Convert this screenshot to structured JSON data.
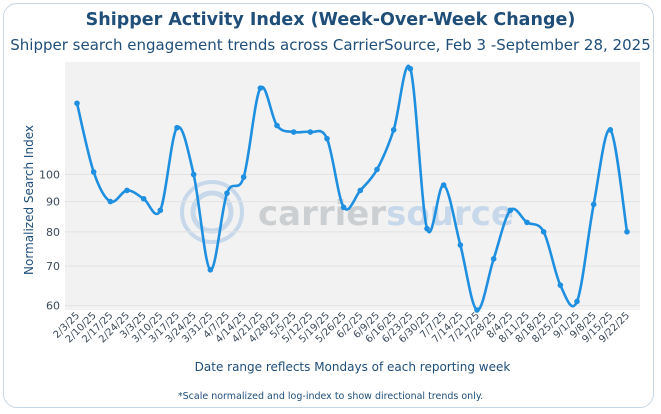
{
  "chart_data": {
    "type": "line",
    "title": "Shipper Activity Index (Week-Over-Week Change)",
    "subtitle": "Shipper search engagement trends across CarrierSource, Feb 3 -September 28, 2025",
    "xlabel": "Date range reflects Mondays of each reporting week",
    "ylabel": "Normalized Search Index",
    "footnote": "*Scale normalized and log-index to show directional trends only.",
    "y_scale": "log",
    "yticks": [
      60,
      70,
      80,
      90,
      100
    ],
    "ylim": [
      59,
      155
    ],
    "grid": "horizontal",
    "line_style": "smooth",
    "watermark": "carriersource",
    "colors": {
      "line": "#1f8fe0",
      "plot_bg": "#f2f2f2",
      "text": "#1f4e79"
    },
    "categories": [
      "2/3/25",
      "2/10/25",
      "2/17/25",
      "2/24/25",
      "3/3/25",
      "3/10/25",
      "3/17/25",
      "3/24/25",
      "3/31/25",
      "4/7/25",
      "4/14/25",
      "4/21/25",
      "4/28/25",
      "5/5/25",
      "5/12/25",
      "5/19/25",
      "5/26/25",
      "6/2/25",
      "6/9/25",
      "6/16/25",
      "6/23/25",
      "6/30/25",
      "7/7/25",
      "7/14/25",
      "7/21/25",
      "7/28/25",
      "8/4/25",
      "8/11/25",
      "8/18/25",
      "8/25/25",
      "9/1/25",
      "9/8/25",
      "9/15/25",
      "9/22/25"
    ],
    "series": [
      {
        "values": [
          132,
          101,
          90,
          94,
          91,
          87,
          120,
          100,
          69,
          93,
          99,
          140,
          121,
          118,
          118,
          115,
          88,
          94,
          102,
          119,
          151,
          81,
          96,
          76,
          59,
          72,
          87,
          83,
          80,
          65,
          61,
          89,
          119,
          80
        ]
      }
    ]
  }
}
